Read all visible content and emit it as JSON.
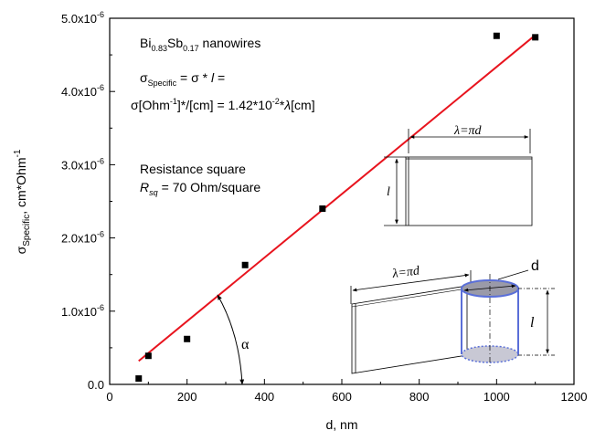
{
  "chart_data": {
    "type": "scatter",
    "xlabel": "d, nm",
    "ylabel_parts": [
      "σ",
      "Specific",
      ", cm*Ohm",
      "-1"
    ],
    "xlim": [
      0,
      1200
    ],
    "ylim": [
      0,
      5e-06
    ],
    "x_ticks": [
      0,
      200,
      400,
      600,
      800,
      1000,
      1200
    ],
    "x_tick_labels": [
      "0",
      "200",
      "400",
      "600",
      "800",
      "1000",
      "1200"
    ],
    "y_ticks": [
      0,
      1e-06,
      2e-06,
      3e-06,
      4e-06,
      5e-06
    ],
    "y_tick_labels": [
      {
        "base": "0.0",
        "exp": ""
      },
      {
        "base": "1.0x10",
        "exp": "-6"
      },
      {
        "base": "2.0x10",
        "exp": "-6"
      },
      {
        "base": "3.0x10",
        "exp": "-6"
      },
      {
        "base": "4.0x10",
        "exp": "-6"
      },
      {
        "base": "5.0x10",
        "exp": "-6"
      }
    ],
    "points": [
      {
        "x": 75,
        "y": 8e-08
      },
      {
        "x": 100,
        "y": 3.9e-07
      },
      {
        "x": 200,
        "y": 6.2e-07
      },
      {
        "x": 350,
        "y": 1.63e-06
      },
      {
        "x": 550,
        "y": 2.4e-06
      },
      {
        "x": 1000,
        "y": 4.76e-06
      },
      {
        "x": 1100,
        "y": 4.74e-06
      }
    ],
    "fit_line": {
      "color": "#e8141e",
      "x": [
        75,
        1100
      ],
      "y": [
        3.2e-07,
        4.77e-06
      ]
    },
    "marker_color": "#000000",
    "grid": false,
    "annotations": {
      "material": {
        "parts": [
          "Bi",
          "0.83",
          "Sb",
          "0.17",
          " nanowires"
        ]
      },
      "formula1": {
        "parts": [
          "σ",
          "Specific",
          " = σ * ",
          "l",
          " ="
        ]
      },
      "formula2": {
        "parts": [
          "σ[Ohm",
          "-1",
          "]*/[cm] = 1.42*10",
          "-2",
          "*",
          "λ",
          "[cm]"
        ]
      },
      "resistance_title": "Resistance square",
      "resistance_value": {
        "parts": [
          "R",
          "sq",
          "= 70 Ohm/square"
        ]
      },
      "angle_label": "α",
      "inset_top_width": "λ=πd",
      "inset_top_height": "l",
      "inset_bottom_width": "λ=πd",
      "inset_bottom_diameter": "d",
      "inset_bottom_height": "l"
    },
    "inset_outline_color": "#5a6fd8"
  }
}
